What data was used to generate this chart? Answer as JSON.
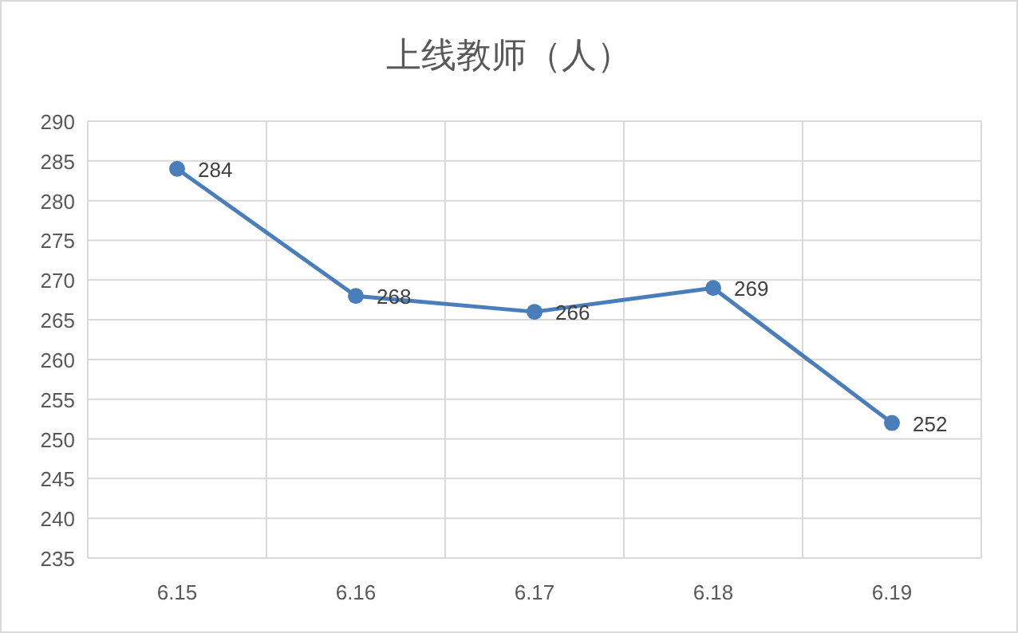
{
  "chart_data": {
    "type": "line",
    "title": "上线教师（人）",
    "categories": [
      "6.15",
      "6.16",
      "6.17",
      "6.18",
      "6.19"
    ],
    "values": [
      284,
      268,
      266,
      269,
      252
    ],
    "color": "#4a7ebb",
    "ylim": [
      235,
      290
    ],
    "yticks": [
      235,
      240,
      245,
      250,
      255,
      260,
      265,
      270,
      275,
      280,
      285,
      290
    ],
    "grid": true,
    "data_labels": true,
    "marker": "circle"
  }
}
